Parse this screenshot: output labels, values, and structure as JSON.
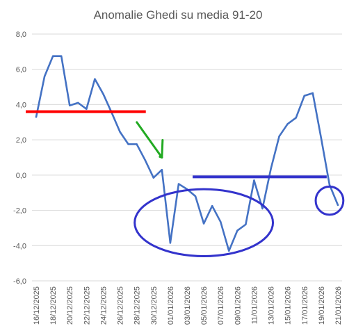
{
  "chart_data": {
    "type": "line",
    "title": "Anomalie Ghedi su media 91-20",
    "ylim": [
      -6,
      8
    ],
    "yticks": [
      "-6,0",
      "-4,0",
      "-2,0",
      "0,0",
      "2,0",
      "4,0",
      "6,0",
      "8,0"
    ],
    "ytick_values": [
      -6,
      -4,
      -2,
      0,
      2,
      4,
      6,
      8
    ],
    "x": [
      "16/12/2025",
      "17/12/2025",
      "18/12/2025",
      "19/12/2025",
      "20/12/2025",
      "21/12/2025",
      "22/12/2025",
      "23/12/2025",
      "24/12/2025",
      "25/12/2025",
      "26/12/2025",
      "27/12/2025",
      "28/12/2025",
      "29/12/2025",
      "30/12/2025",
      "31/12/2025",
      "01/01/2026",
      "02/01/2026",
      "03/01/2026",
      "04/01/2026",
      "05/01/2026",
      "06/01/2026",
      "07/01/2026",
      "08/01/2026",
      "09/01/2026",
      "10/01/2026",
      "11/01/2026",
      "12/01/2026",
      "13/01/2026",
      "14/01/2026",
      "15/01/2026",
      "16/01/2026",
      "17/01/2026",
      "18/01/2026",
      "19/01/2026",
      "20/01/2026",
      "21/01/2026"
    ],
    "xtick_labels": [
      "16/12/2025",
      "18/12/2025",
      "20/12/2025",
      "22/12/2025",
      "24/12/2025",
      "26/12/2025",
      "28/12/2025",
      "30/12/2025",
      "01/01/2026",
      "03/01/2026",
      "05/01/2026",
      "07/01/2026",
      "09/01/2026",
      "11/01/2026",
      "13/01/2026",
      "15/01/2026",
      "17/01/2026",
      "19/01/2026",
      "21/01/2026"
    ],
    "series": [
      {
        "color": "#4472c4",
        "values": [
          3.3,
          5.6,
          6.75,
          6.75,
          3.95,
          4.1,
          3.75,
          5.45,
          4.6,
          3.55,
          2.45,
          1.75,
          1.75,
          0.85,
          -0.15,
          0.3,
          -3.85,
          -0.5,
          -0.8,
          -1.2,
          -2.75,
          -1.75,
          -2.65,
          -4.3,
          -3.15,
          -2.8,
          -0.3,
          -1.9,
          0.35,
          2.2,
          2.9,
          3.25,
          4.5,
          4.65,
          2.1,
          -0.55,
          -1.7
        ]
      }
    ],
    "annotations": {
      "red_line": {
        "color": "#ff0000",
        "y": 3.6,
        "x_from": "16/12/2025",
        "x_to": "29/12/2025"
      },
      "blue_line": {
        "color": "#3333cc",
        "y": -0.1,
        "x_from": "04/01/2026",
        "x_to": "19/01/2026"
      },
      "green_arrow": {
        "color": "#22aa22",
        "from_x": "28/12/2025",
        "from_y": 3.0,
        "to_x": "31/12/2025",
        "to_y": 1.0
      },
      "ellipses": [
        {
          "color": "#3333cc",
          "cx": "05/01/2026",
          "cy": -2.7,
          "span_days": 16.5,
          "span_y": 3.8
        },
        {
          "color": "#3333cc",
          "cx": "20/01/2026",
          "cy": -1.45,
          "span_days": 3.3,
          "span_y": 1.6
        }
      ]
    }
  }
}
